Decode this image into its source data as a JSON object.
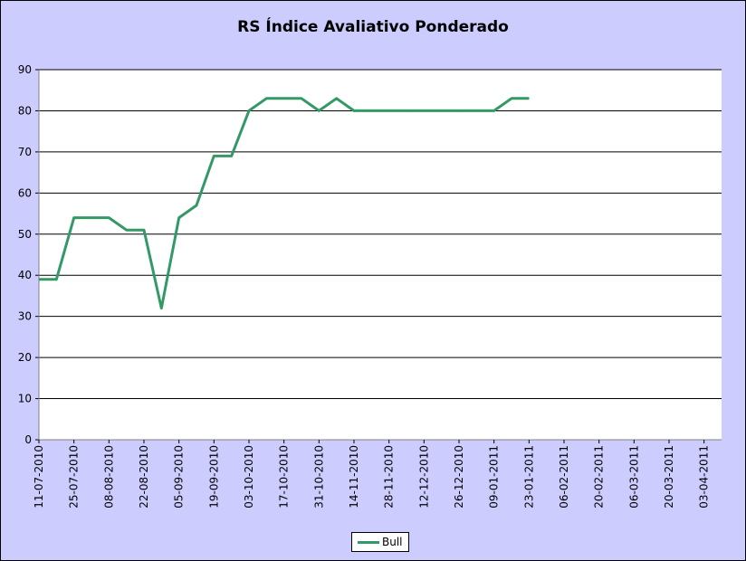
{
  "chart_data": {
    "type": "line",
    "title": "RS Índice Avaliativo Ponderado",
    "xlabel": "",
    "ylabel": "",
    "ylim": [
      0,
      90
    ],
    "yticks": [
      0,
      10,
      20,
      30,
      40,
      50,
      60,
      70,
      80,
      90
    ],
    "xlim": [
      "2010-07-11",
      "2011-04-10"
    ],
    "xtick_labels": [
      "11-07-2010",
      "25-07-2010",
      "08-08-2010",
      "22-08-2010",
      "05-09-2010",
      "19-09-2010",
      "03-10-2010",
      "17-10-2010",
      "31-10-2010",
      "14-11-2010",
      "28-11-2010",
      "12-12-2010",
      "26-12-2010",
      "09-01-2011",
      "23-01-2011",
      "06-02-2011",
      "20-02-2011",
      "06-03-2011",
      "20-03-2011",
      "03-04-2011"
    ],
    "grid": "horizontal",
    "legend_position": "bottom",
    "series": [
      {
        "name": "Bull",
        "color": "#339966",
        "points": [
          [
            "2010-07-11",
            39
          ],
          [
            "2010-07-18",
            39
          ],
          [
            "2010-07-25",
            54
          ],
          [
            "2010-08-01",
            54
          ],
          [
            "2010-08-08",
            54
          ],
          [
            "2010-08-15",
            51
          ],
          [
            "2010-08-22",
            51
          ],
          [
            "2010-08-29",
            32
          ],
          [
            "2010-09-05",
            54
          ],
          [
            "2010-09-12",
            57
          ],
          [
            "2010-09-19",
            69
          ],
          [
            "2010-09-26",
            69
          ],
          [
            "2010-10-03",
            80
          ],
          [
            "2010-10-10",
            83
          ],
          [
            "2010-10-17",
            83
          ],
          [
            "2010-10-24",
            83
          ],
          [
            "2010-10-31",
            80
          ],
          [
            "2010-11-07",
            83
          ],
          [
            "2010-11-14",
            80
          ],
          [
            "2010-11-21",
            80
          ],
          [
            "2010-11-28",
            80
          ],
          [
            "2010-12-05",
            80
          ],
          [
            "2010-12-12",
            80
          ],
          [
            "2010-12-19",
            80
          ],
          [
            "2010-12-26",
            80
          ],
          [
            "2011-01-02",
            80
          ],
          [
            "2011-01-09",
            80
          ],
          [
            "2011-01-16",
            83
          ],
          [
            "2011-01-23",
            83
          ]
        ]
      }
    ]
  }
}
